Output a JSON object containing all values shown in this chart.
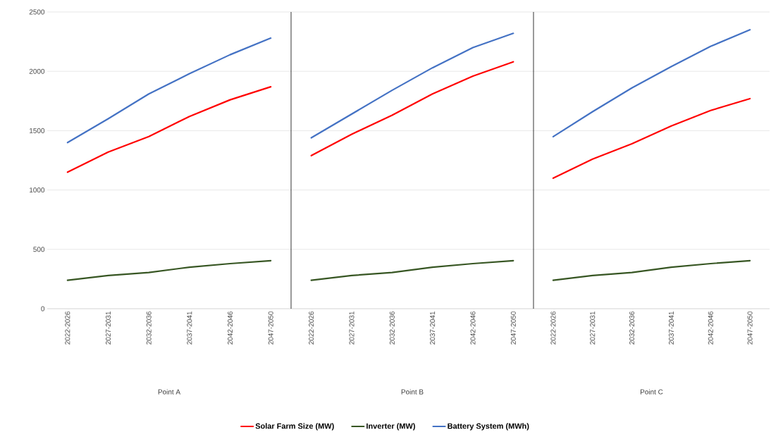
{
  "chart_data": [
    {
      "type": "line",
      "xlabel": "Point A",
      "categories": [
        "2022-2026",
        "2027-2031",
        "2032-2036",
        "2037-2041",
        "2042-2046",
        "2047-2050"
      ],
      "ylim": [
        0,
        2500
      ],
      "yticks": [
        0,
        500,
        1000,
        1500,
        2000,
        2500
      ],
      "grid": "y",
      "legend": "bottom",
      "marker": "none",
      "series": [
        {
          "name": "Solar Farm Size (MW)",
          "color": "#ff0000",
          "values": [
            1150,
            1320,
            1450,
            1620,
            1760,
            1870
          ]
        },
        {
          "name": "Inverter (MW)",
          "color": "#375623",
          "values": [
            240,
            280,
            305,
            350,
            380,
            405
          ]
        },
        {
          "name": "Battery System (MWh)",
          "color": "#4472c4",
          "values": [
            1400,
            1600,
            1810,
            1980,
            2140,
            2280
          ]
        }
      ]
    },
    {
      "type": "line",
      "xlabel": "Point B",
      "categories": [
        "2022-2026",
        "2027-2031",
        "2032-2036",
        "2037-2041",
        "2042-2046",
        "2047-2050"
      ],
      "ylim": [
        0,
        2500
      ],
      "yticks": [
        0,
        500,
        1000,
        1500,
        2000,
        2500
      ],
      "grid": "y",
      "tick_labels": "x",
      "marker": "none",
      "series": [
        {
          "color": "#ff0000",
          "values": [
            1290,
            1470,
            1630,
            1810,
            1960,
            2080
          ]
        },
        {
          "color": "#375623",
          "values": [
            240,
            280,
            305,
            350,
            380,
            405
          ]
        },
        {
          "color": "#4472c4",
          "values": [
            1440,
            1640,
            1840,
            2030,
            2200,
            2320
          ]
        }
      ]
    },
    {
      "type": "line",
      "xlabel": "Point C",
      "categories": [
        "2022-2026",
        "2027-2031",
        "2032-2036",
        "2037-2041",
        "2042-2046",
        "2047-2050"
      ],
      "ylim": [
        0,
        2500
      ],
      "yticks": [
        0,
        500,
        1000,
        1500,
        2000,
        2500
      ],
      "grid": "y",
      "tick_labels": "x",
      "marker": "none",
      "series": [
        {
          "color": "#ff0000",
          "values": [
            1100,
            1260,
            1390,
            1540,
            1670,
            1770
          ]
        },
        {
          "color": "#375623",
          "values": [
            240,
            280,
            305,
            350,
            380,
            405
          ]
        },
        {
          "color": "#4472c4",
          "values": [
            1450,
            1660,
            1860,
            2040,
            2210,
            2350
          ]
        }
      ]
    }
  ]
}
